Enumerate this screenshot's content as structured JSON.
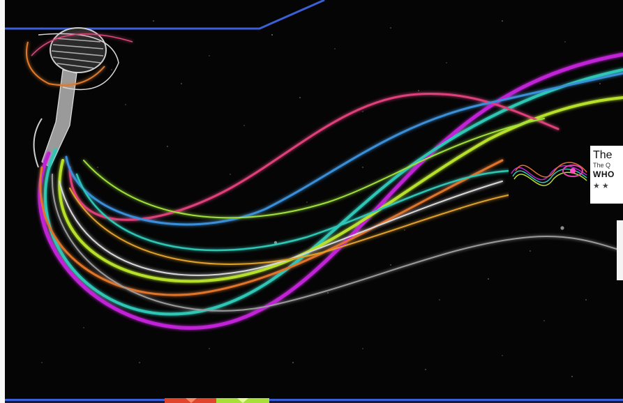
{
  "colors": {
    "accent_blue": "#3b5fd6",
    "footer_red": "#e0452b",
    "footer_green": "#a8e03a",
    "background": "#050505"
  },
  "featured_card": {
    "title": "The",
    "subtitle": "The Q",
    "heading": "WHO",
    "stars": "★ ★",
    "thumbnail_icon": "light-swirl-thumbnail"
  },
  "hero": {
    "image_icon": "microphone-with-neon-light-streams"
  }
}
